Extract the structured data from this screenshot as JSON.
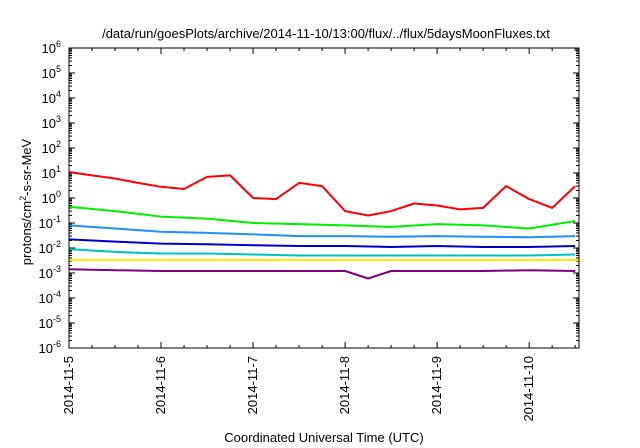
{
  "chart_data": {
    "type": "line",
    "title": "/data/run/goesPlots/archive/2014-11-10/13:00/flux/../flux/5daysMoonFluxes.txt",
    "xlabel": "Coordinated Universal Time (UTC)",
    "ylabel": {
      "prefix": "protons/cm",
      "superscript": "2",
      "suffix": "-s-sr-MeV"
    },
    "x_tick_labels": [
      "2014-11-5",
      "2014-11-6",
      "2014-11-7",
      "2014-11-8",
      "2014-11-9",
      "2014-11-10"
    ],
    "xlim": [
      "2014-11-05T00:00",
      "2014-11-10T13:00"
    ],
    "y_scale": "log",
    "ylim": [
      1e-06,
      1000000.0
    ],
    "y_tick_labels": [
      {
        "base": "10",
        "exp": "6",
        "value": 1000000.0
      },
      {
        "base": "10",
        "exp": "5",
        "value": 100000.0
      },
      {
        "base": "10",
        "exp": "4",
        "value": 10000.0
      },
      {
        "base": "10",
        "exp": "3",
        "value": 1000.0
      },
      {
        "base": "10",
        "exp": "2",
        "value": 100.0
      },
      {
        "base": "10",
        "exp": "1",
        "value": 10.0
      },
      {
        "base": "10",
        "exp": "0",
        "value": 1.0
      },
      {
        "base": "10",
        "exp": "-1",
        "value": 0.1
      },
      {
        "base": "10",
        "exp": "-2",
        "value": 0.01
      },
      {
        "base": "10",
        "exp": "-3",
        "value": 0.001
      },
      {
        "base": "10",
        "exp": "-4",
        "value": 0.0001
      },
      {
        "base": "10",
        "exp": "-5",
        "value": 1e-05
      },
      {
        "base": "10",
        "exp": "-6",
        "value": 1e-06
      }
    ],
    "grid": false,
    "legend": "none",
    "series": [
      {
        "color": "#ff0000",
        "x": [
          "2014-11-05T00:00",
          "2014-11-05T06:00",
          "2014-11-05T12:00",
          "2014-11-05T18:00",
          "2014-11-06T00:00",
          "2014-11-06T06:00",
          "2014-11-06T12:00",
          "2014-11-06T18:00",
          "2014-11-07T00:00",
          "2014-11-07T06:00",
          "2014-11-07T12:00",
          "2014-11-07T18:00",
          "2014-11-08T00:00",
          "2014-11-08T06:00",
          "2014-11-08T12:00",
          "2014-11-08T18:00",
          "2014-11-09T00:00",
          "2014-11-09T06:00",
          "2014-11-09T12:00",
          "2014-11-09T18:00",
          "2014-11-10T00:00",
          "2014-11-10T06:00",
          "2014-11-10T12:00"
        ],
        "y": [
          11,
          8,
          6,
          4,
          2.8,
          2.3,
          7,
          8,
          1,
          0.9,
          4,
          3,
          0.3,
          0.2,
          0.3,
          0.6,
          0.5,
          0.35,
          0.4,
          3,
          0.9,
          0.4,
          3
        ]
      },
      {
        "color": "#00ee00",
        "x": [
          "2014-11-05T00:00",
          "2014-11-05T12:00",
          "2014-11-06T00:00",
          "2014-11-06T12:00",
          "2014-11-07T00:00",
          "2014-11-07T12:00",
          "2014-11-08T00:00",
          "2014-11-08T12:00",
          "2014-11-09T00:00",
          "2014-11-09T12:00",
          "2014-11-10T00:00",
          "2014-11-10T12:00"
        ],
        "y": [
          0.45,
          0.3,
          0.18,
          0.15,
          0.1,
          0.09,
          0.08,
          0.07,
          0.09,
          0.08,
          0.06,
          0.12
        ]
      },
      {
        "color": "#1e90ff",
        "x": [
          "2014-11-05T00:00",
          "2014-11-05T12:00",
          "2014-11-06T00:00",
          "2014-11-06T12:00",
          "2014-11-07T00:00",
          "2014-11-07T12:00",
          "2014-11-08T00:00",
          "2014-11-08T12:00",
          "2014-11-09T00:00",
          "2014-11-09T12:00",
          "2014-11-10T00:00",
          "2014-11-10T12:00"
        ],
        "y": [
          0.08,
          0.06,
          0.045,
          0.04,
          0.035,
          0.03,
          0.03,
          0.028,
          0.03,
          0.028,
          0.027,
          0.03
        ]
      },
      {
        "color": "#0000cc",
        "x": [
          "2014-11-05T00:00",
          "2014-11-05T12:00",
          "2014-11-06T00:00",
          "2014-11-06T12:00",
          "2014-11-07T00:00",
          "2014-11-07T12:00",
          "2014-11-08T00:00",
          "2014-11-08T12:00",
          "2014-11-09T00:00",
          "2014-11-09T12:00",
          "2014-11-10T00:00",
          "2014-11-10T12:00"
        ],
        "y": [
          0.022,
          0.018,
          0.015,
          0.014,
          0.013,
          0.012,
          0.012,
          0.011,
          0.012,
          0.011,
          0.011,
          0.012
        ]
      },
      {
        "color": "#00c0c0",
        "x": [
          "2014-11-05T00:00",
          "2014-11-05T12:00",
          "2014-11-06T00:00",
          "2014-11-06T12:00",
          "2014-11-07T00:00",
          "2014-11-07T12:00",
          "2014-11-08T00:00",
          "2014-11-08T12:00",
          "2014-11-09T00:00",
          "2014-11-09T12:00",
          "2014-11-10T00:00",
          "2014-11-10T12:00"
        ],
        "y": [
          0.009,
          0.007,
          0.006,
          0.006,
          0.0055,
          0.005,
          0.005,
          0.005,
          0.005,
          0.005,
          0.005,
          0.0055
        ]
      },
      {
        "color": "#ffee00",
        "x": [
          "2014-11-05T00:00",
          "2014-11-10T13:00"
        ],
        "y": [
          0.0033,
          0.0033
        ]
      },
      {
        "color": "#800080",
        "x": [
          "2014-11-05T00:00",
          "2014-11-05T12:00",
          "2014-11-06T00:00",
          "2014-11-06T12:00",
          "2014-11-07T00:00",
          "2014-11-07T12:00",
          "2014-11-08T00:00",
          "2014-11-08T06:00",
          "2014-11-08T12:00",
          "2014-11-09T00:00",
          "2014-11-09T12:00",
          "2014-11-10T00:00",
          "2014-11-10T12:00"
        ],
        "y": [
          0.0014,
          0.0013,
          0.0012,
          0.0012,
          0.0012,
          0.0012,
          0.0012,
          0.0006,
          0.0012,
          0.0012,
          0.0012,
          0.0013,
          0.0012
        ]
      }
    ]
  }
}
